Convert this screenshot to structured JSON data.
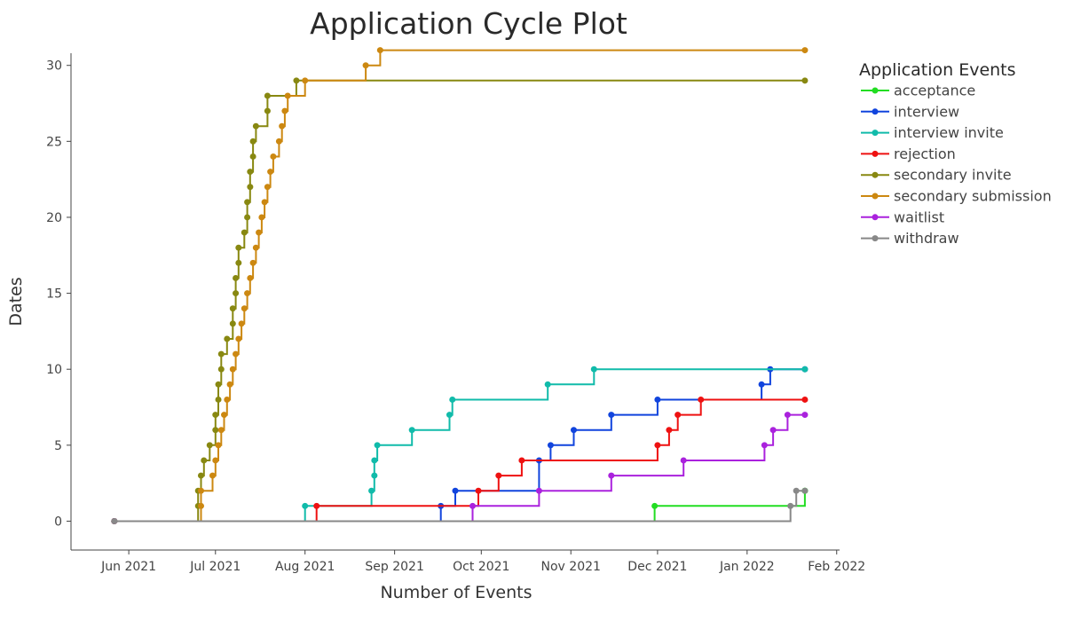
{
  "chart_data": {
    "type": "line",
    "line_shape": "step",
    "title": "Application Cycle Plot",
    "xlabel": "Number of Events",
    "ylabel": "Dates",
    "x_axis_type": "date",
    "xlim": [
      "2021-05-12",
      "2022-02-02"
    ],
    "ylim": [
      -1.9,
      30.8
    ],
    "x_ticks": [
      {
        "value": "2021-06-01",
        "label": "Jun 2021"
      },
      {
        "value": "2021-07-01",
        "label": "Jul 2021"
      },
      {
        "value": "2021-08-01",
        "label": "Aug 2021"
      },
      {
        "value": "2021-09-01",
        "label": "Sep 2021"
      },
      {
        "value": "2021-10-01",
        "label": "Oct 2021"
      },
      {
        "value": "2021-11-01",
        "label": "Nov 2021"
      },
      {
        "value": "2021-12-01",
        "label": "Dec 2021"
      },
      {
        "value": "2022-01-01",
        "label": "Jan 2022"
      },
      {
        "value": "2022-02-01",
        "label": "Feb 2022"
      }
    ],
    "y_ticks": [
      0,
      5,
      10,
      15,
      20,
      25,
      30
    ],
    "grid": false,
    "legend": {
      "title": "Application Events",
      "position": "right"
    },
    "series": [
      {
        "name": "acceptance",
        "color": "#22dd22",
        "x": [
          "2021-05-27",
          "2021-11-30",
          "2022-01-21",
          "2022-01-21"
        ],
        "y": [
          0,
          1,
          2,
          2
        ]
      },
      {
        "name": "interview",
        "color": "#1144dd",
        "x": [
          "2021-05-27",
          "2021-09-17",
          "2021-09-22",
          "2021-10-21",
          "2021-10-25",
          "2021-11-02",
          "2021-11-15",
          "2021-12-01",
          "2022-01-06",
          "2022-01-09",
          "2022-01-21"
        ],
        "y": [
          0,
          1,
          2,
          4,
          5,
          6,
          7,
          8,
          9,
          10,
          10
        ]
      },
      {
        "name": "interview invite",
        "color": "#11bbaa",
        "x": [
          "2021-05-27",
          "2021-08-01",
          "2021-08-24",
          "2021-08-25",
          "2021-08-25",
          "2021-08-26",
          "2021-09-07",
          "2021-09-20",
          "2021-09-21",
          "2021-10-24",
          "2021-11-09",
          "2022-01-21"
        ],
        "y": [
          0,
          1,
          2,
          3,
          4,
          5,
          6,
          7,
          8,
          9,
          10,
          10
        ]
      },
      {
        "name": "rejection",
        "color": "#ee1111",
        "x": [
          "2021-05-27",
          "2021-08-05",
          "2021-09-30",
          "2021-10-07",
          "2021-10-15",
          "2021-12-01",
          "2021-12-05",
          "2021-12-08",
          "2021-12-16",
          "2022-01-21"
        ],
        "y": [
          0,
          1,
          2,
          3,
          4,
          5,
          6,
          7,
          8,
          8
        ]
      },
      {
        "name": "secondary invite",
        "color": "#888811",
        "x": [
          "2021-05-27",
          "2021-06-25",
          "2021-06-25",
          "2021-06-26",
          "2021-06-27",
          "2021-06-29",
          "2021-07-01",
          "2021-07-01",
          "2021-07-02",
          "2021-07-02",
          "2021-07-03",
          "2021-07-03",
          "2021-07-05",
          "2021-07-07",
          "2021-07-07",
          "2021-07-08",
          "2021-07-08",
          "2021-07-09",
          "2021-07-09",
          "2021-07-11",
          "2021-07-12",
          "2021-07-12",
          "2021-07-13",
          "2021-07-13",
          "2021-07-14",
          "2021-07-14",
          "2021-07-15",
          "2021-07-19",
          "2021-07-19",
          "2021-07-29",
          "2022-01-21"
        ],
        "y": [
          0,
          1,
          2,
          3,
          4,
          5,
          6,
          7,
          8,
          9,
          10,
          11,
          12,
          13,
          14,
          15,
          16,
          17,
          18,
          19,
          20,
          21,
          22,
          23,
          24,
          25,
          26,
          27,
          28,
          29,
          29
        ]
      },
      {
        "name": "secondary submission",
        "color": "#cc8811",
        "x": [
          "2021-05-27",
          "2021-06-26",
          "2021-06-26",
          "2021-06-30",
          "2021-07-01",
          "2021-07-02",
          "2021-07-03",
          "2021-07-04",
          "2021-07-05",
          "2021-07-06",
          "2021-07-07",
          "2021-07-08",
          "2021-07-09",
          "2021-07-10",
          "2021-07-11",
          "2021-07-12",
          "2021-07-13",
          "2021-07-14",
          "2021-07-15",
          "2021-07-16",
          "2021-07-17",
          "2021-07-18",
          "2021-07-19",
          "2021-07-20",
          "2021-07-21",
          "2021-07-23",
          "2021-07-24",
          "2021-07-25",
          "2021-07-26",
          "2021-08-01",
          "2021-08-22",
          "2021-08-27",
          "2022-01-21"
        ],
        "y": [
          0,
          1,
          2,
          3,
          4,
          5,
          6,
          7,
          8,
          9,
          10,
          11,
          12,
          13,
          14,
          15,
          16,
          17,
          18,
          19,
          20,
          21,
          22,
          23,
          24,
          25,
          26,
          27,
          28,
          29,
          30,
          31,
          31
        ]
      },
      {
        "name": "waitlist",
        "color": "#aa22dd",
        "x": [
          "2021-05-27",
          "2021-09-28",
          "2021-10-21",
          "2021-11-15",
          "2021-12-10",
          "2022-01-07",
          "2022-01-10",
          "2022-01-15",
          "2022-01-21"
        ],
        "y": [
          0,
          1,
          2,
          3,
          4,
          5,
          6,
          7,
          7
        ]
      },
      {
        "name": "withdraw",
        "color": "#888888",
        "x": [
          "2021-05-27",
          "2022-01-16",
          "2022-01-18",
          "2022-01-21"
        ],
        "y": [
          0,
          1,
          2,
          2
        ]
      }
    ]
  }
}
